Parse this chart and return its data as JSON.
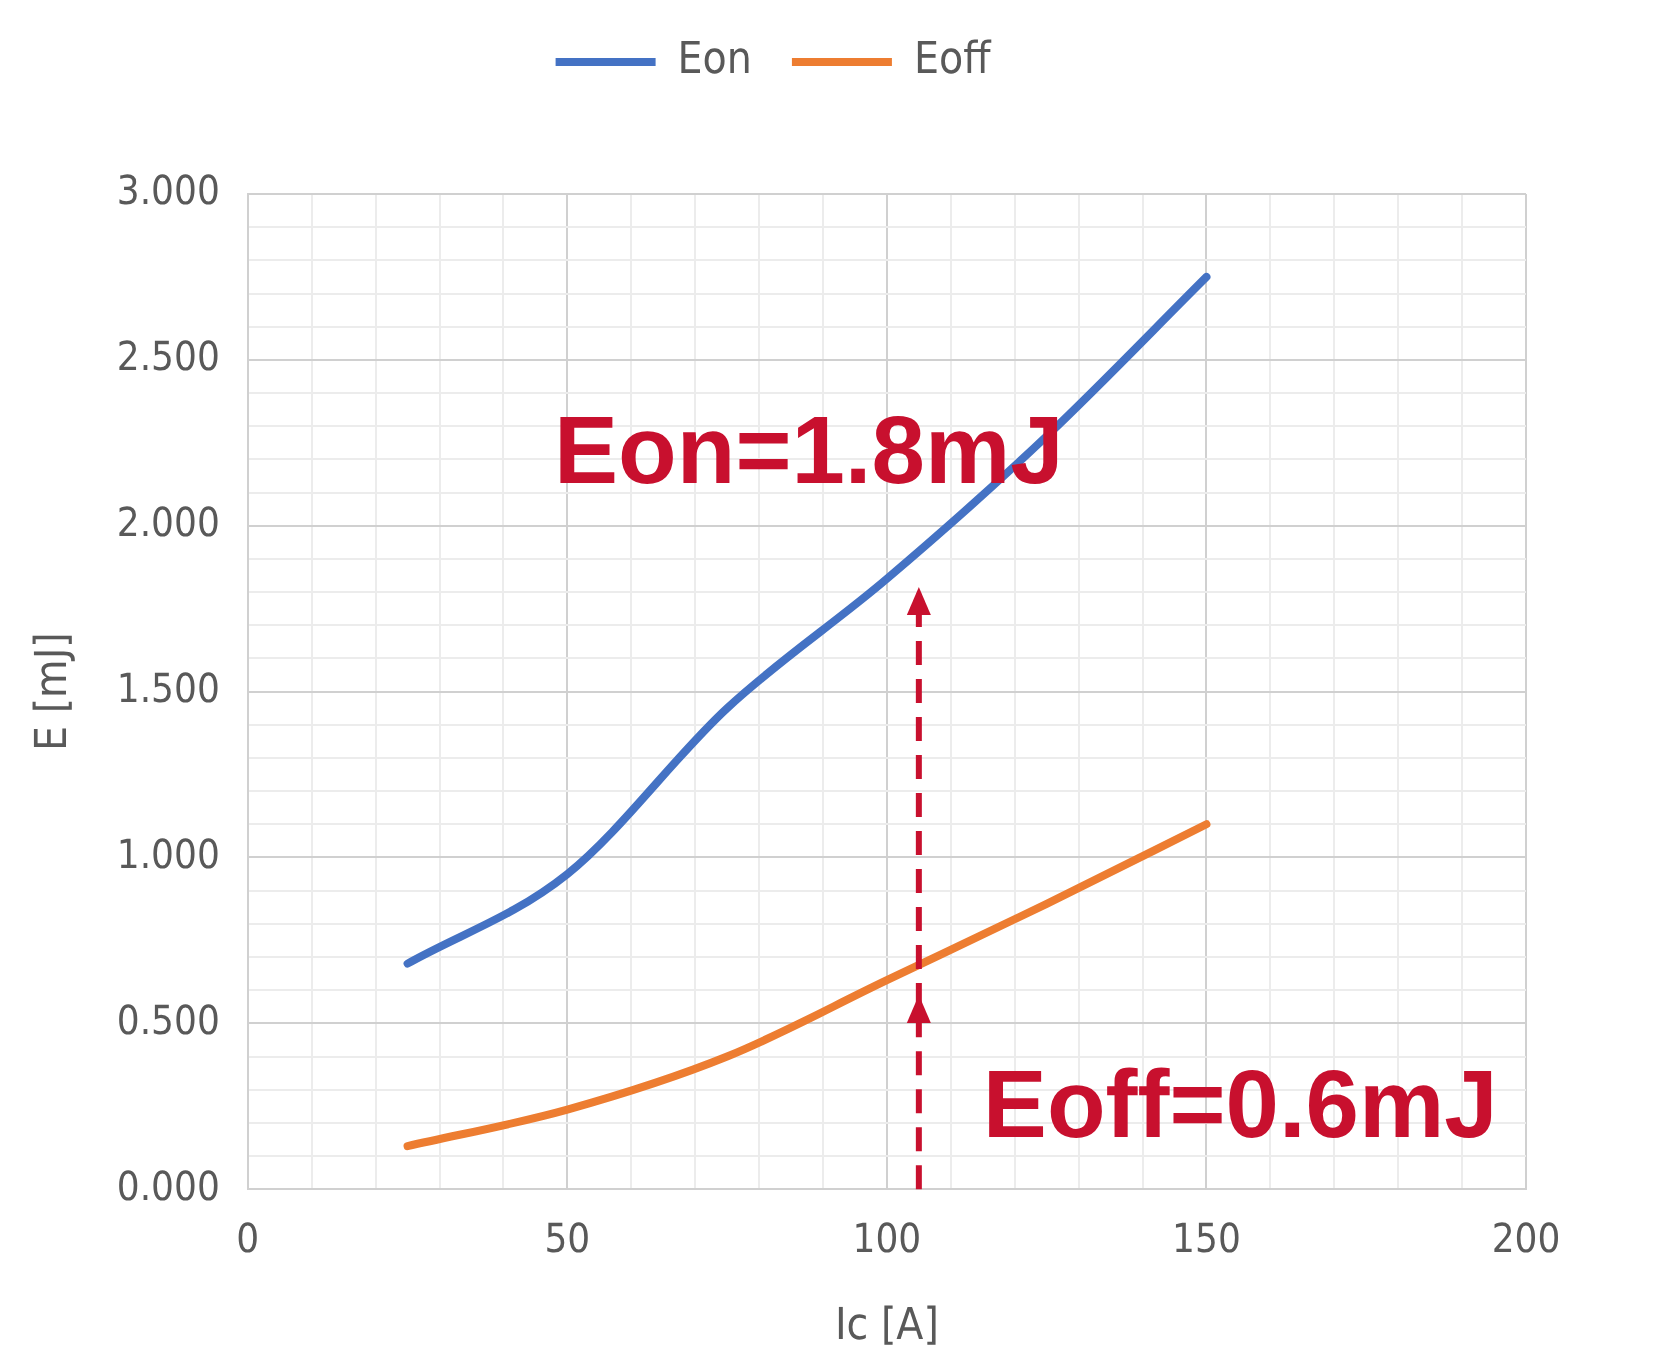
{
  "chart_data": {
    "type": "line",
    "xlabel": "Ic [A]",
    "ylabel": "E [mJ]",
    "x": [
      25,
      50,
      75,
      100,
      125,
      150
    ],
    "series": [
      {
        "name": "Eon",
        "color": "#4472c4",
        "values": [
          0.68,
          0.95,
          1.45,
          1.84,
          2.27,
          2.75
        ]
      },
      {
        "name": "Eoff",
        "color": "#ed7d31",
        "values": [
          0.13,
          0.24,
          0.4,
          0.63,
          0.86,
          1.1
        ]
      }
    ],
    "xlim": [
      0,
      200
    ],
    "xticks": [
      0,
      {
        "value": 10,
        "label": null
      },
      {
        "value": 20,
        "label": null
      },
      {
        "value": 30,
        "label": null
      },
      {
        "value": 40,
        "label": null
      },
      50,
      {
        "value": 60,
        "label": null
      },
      {
        "value": 70,
        "label": null
      },
      {
        "value": 80,
        "label": null
      },
      {
        "value": 90,
        "label": null
      },
      100,
      {
        "value": 110,
        "label": null
      },
      {
        "value": 120,
        "label": null
      },
      {
        "value": 130,
        "label": null
      },
      {
        "value": 140,
        "label": null
      },
      150,
      {
        "value": 160,
        "label": null
      },
      {
        "value": 170,
        "label": null
      },
      {
        "value": 180,
        "label": null
      },
      {
        "value": 190,
        "label": null
      },
      200
    ],
    "ylim": [
      0,
      3
    ],
    "yticks": [
      {
        "value": 0,
        "label": "0.000"
      },
      {
        "value": 0.1,
        "label": null
      },
      {
        "value": 0.2,
        "label": null
      },
      {
        "value": 0.3,
        "label": null
      },
      {
        "value": 0.4,
        "label": null
      },
      {
        "value": 0.5,
        "label": "0.500"
      },
      {
        "value": 0.6,
        "label": null
      },
      {
        "value": 0.7,
        "label": null
      },
      {
        "value": 0.8,
        "label": null
      },
      {
        "value": 0.9,
        "label": null
      },
      {
        "value": 1,
        "label": "1.000"
      },
      {
        "value": 1.1,
        "label": null
      },
      {
        "value": 1.2,
        "label": null
      },
      {
        "value": 1.3,
        "label": null
      },
      {
        "value": 1.4,
        "label": null
      },
      {
        "value": 1.5,
        "label": "1.500"
      },
      {
        "value": 1.6,
        "label": null
      },
      {
        "value": 1.7,
        "label": null
      },
      {
        "value": 1.8,
        "label": null
      },
      {
        "value": 1.9,
        "label": null
      },
      {
        "value": 2,
        "label": "2.000"
      },
      {
        "value": 2.1,
        "label": null
      },
      {
        "value": 2.2,
        "label": null
      },
      {
        "value": 2.3,
        "label": null
      },
      {
        "value": 2.4,
        "label": null
      },
      {
        "value": 2.5,
        "label": "2.500"
      },
      {
        "value": 2.6,
        "label": null
      },
      {
        "value": 2.7,
        "label": null
      },
      {
        "value": 2.8,
        "label": null
      },
      {
        "value": 2.9,
        "label": null
      },
      {
        "value": 3,
        "label": "3.000"
      }
    ],
    "grid": true,
    "legend": "top",
    "marker": "none",
    "line_style": "solid",
    "annotations": [
      {
        "text": "Eon=1.8mJ",
        "x": 105,
        "y": 1.9
      },
      {
        "text": "Eoff=0.6mJ",
        "x": 105,
        "y": 0.67
      }
    ]
  }
}
